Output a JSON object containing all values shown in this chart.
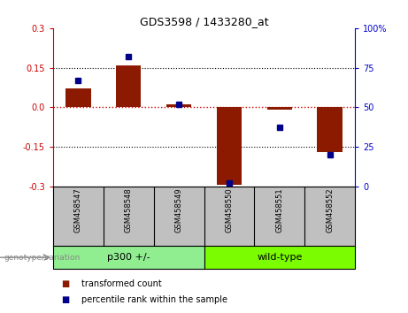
{
  "title": "GDS3598 / 1433280_at",
  "samples": [
    "GSM458547",
    "GSM458548",
    "GSM458549",
    "GSM458550",
    "GSM458551",
    "GSM458552"
  ],
  "bar_values": [
    0.07,
    0.16,
    0.01,
    -0.295,
    -0.01,
    -0.17
  ],
  "percentile_values": [
    67,
    82,
    52,
    2,
    37,
    20
  ],
  "groups": [
    {
      "label": "p300 +/-",
      "indices": [
        0,
        1,
        2
      ],
      "color": "#90EE90"
    },
    {
      "label": "wild-type",
      "indices": [
        3,
        4,
        5
      ],
      "color": "#7CFC00"
    }
  ],
  "bar_color": "#8B1A00",
  "dot_color": "#00008B",
  "ylim_left": [
    -0.3,
    0.3
  ],
  "ylim_right": [
    0,
    100
  ],
  "yticks_left": [
    -0.3,
    -0.15,
    0.0,
    0.15,
    0.3
  ],
  "yticks_right": [
    0,
    25,
    50,
    75,
    100
  ],
  "zero_line_color": "#CC0000",
  "grid_color": "#000000",
  "background_color": "#ffffff",
  "plot_bg_color": "#ffffff",
  "tick_label_color_left": "#CC0000",
  "tick_label_color_right": "#0000CC",
  "genotype_label": "genotype/variation",
  "legend_bar_label": "transformed count",
  "legend_dot_label": "percentile rank within the sample",
  "group_bg_color_p300": "#90EE90",
  "group_bg_color_wt": "#7CFC00",
  "xtick_bg_color": "#C0C0C0"
}
